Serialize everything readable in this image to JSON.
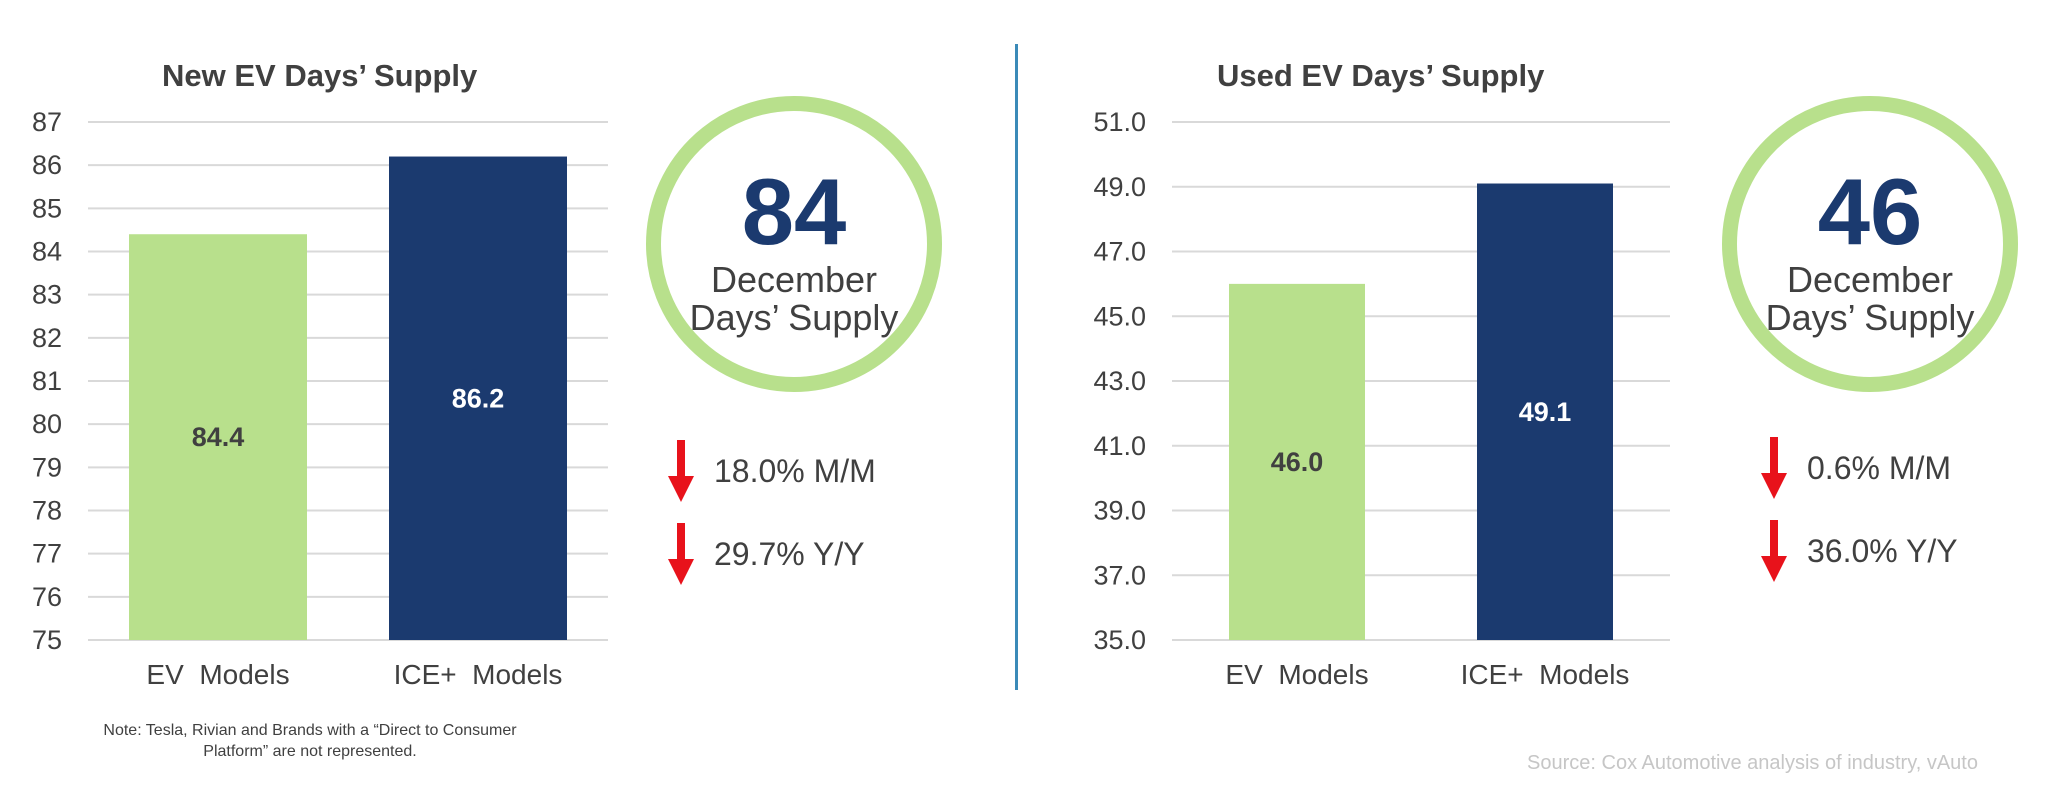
{
  "chart_data": [
    {
      "type": "bar",
      "title": "New EV Days’ Supply",
      "categories": [
        "EV  Models",
        "ICE+  Models"
      ],
      "values": [
        84.4,
        86.2
      ],
      "value_labels": [
        "84.4",
        "86.2"
      ],
      "colors": [
        "#b8e08c",
        "#1b3a6f"
      ],
      "ylim": [
        75,
        87
      ],
      "yticks": [
        "75",
        "76",
        "77",
        "78",
        "79",
        "80",
        "81",
        "82",
        "83",
        "84",
        "85",
        "86",
        "87"
      ],
      "grid": true,
      "xlabel": "",
      "ylabel": ""
    },
    {
      "type": "bar",
      "title": "Used EV Days’ Supply",
      "categories": [
        "EV  Models",
        "ICE+  Models"
      ],
      "values": [
        46.0,
        49.1
      ],
      "value_labels": [
        "46.0",
        "49.1"
      ],
      "colors": [
        "#b8e08c",
        "#1b3a6f"
      ],
      "ylim": [
        35,
        51
      ],
      "yticks": [
        "35.0",
        "37.0",
        "39.0",
        "41.0",
        "43.0",
        "45.0",
        "47.0",
        "49.0",
        "51.0"
      ],
      "grid": true,
      "xlabel": "",
      "ylabel": ""
    }
  ],
  "summaries": [
    {
      "value": "84",
      "line1": "December",
      "line2": "Days’ Supply",
      "changes": [
        {
          "direction": "down",
          "text": "18.0% M/M"
        },
        {
          "direction": "down",
          "text": "29.7% Y/Y"
        }
      ]
    },
    {
      "value": "46",
      "line1": "December",
      "line2": "Days’ Supply",
      "changes": [
        {
          "direction": "down",
          "text": "0.6% M/M"
        },
        {
          "direction": "down",
          "text": "36.0% Y/Y"
        }
      ]
    }
  ],
  "note": "Note: Tesla, Rivian and Brands with a “Direct to Consumer Platform” are not represented.",
  "source": "Source: Cox Automotive analysis of industry, vAuto",
  "colors": {
    "ev_bar": "#b8e08c",
    "ice_bar": "#1b3a6f",
    "ring": "#b8e08c",
    "arrow": "#e8121b",
    "divider": "#3b8ab8"
  }
}
